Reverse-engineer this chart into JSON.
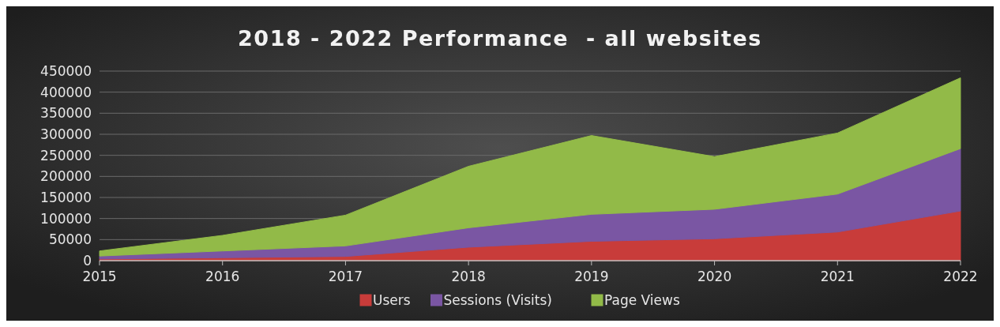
{
  "chart_data": {
    "type": "area",
    "title": "2018 - 2022 Performance  - all websites",
    "stacked": true,
    "categories": [
      "2015",
      "2016",
      "2017",
      "2018",
      "2019",
      "2020",
      "2021",
      "2022"
    ],
    "series": [
      {
        "name": "Users",
        "color": "#c83c3a",
        "values": [
          4000,
          7000,
          10000,
          32000,
          46000,
          52000,
          68000,
          118000
        ]
      },
      {
        "name": "Sessions (Visits)",
        "color": "#7a56a3",
        "values": [
          7000,
          16000,
          25000,
          46000,
          64000,
          70000,
          90000,
          148000
        ]
      },
      {
        "name": "Page Views",
        "color": "#92ba48",
        "values": [
          12000,
          37000,
          73000,
          146000,
          187000,
          125000,
          145000,
          168000
        ]
      }
    ],
    "ylim": [
      0,
      450000
    ],
    "yticks": [
      0,
      50000,
      100000,
      150000,
      200000,
      250000,
      300000,
      350000,
      400000,
      450000
    ],
    "grid": "y",
    "legend": "bottom"
  }
}
